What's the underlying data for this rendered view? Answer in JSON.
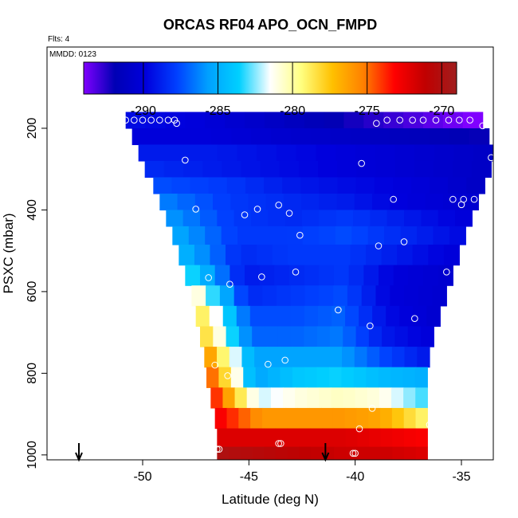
{
  "chart_data": {
    "type": "heatmap",
    "title": "ORCAS RF04 APO_OCN_FMPD",
    "annotations": {
      "flights": "Flts: 4",
      "date": "MMDD: 0123"
    },
    "xlabel": "Latitude (deg N)",
    "ylabel": "PSXC (mbar)",
    "xlim": [
      -54.5,
      -33.5
    ],
    "ylim": [
      1012,
      1
    ],
    "x_ticks": [
      -50,
      -45,
      -40,
      -35
    ],
    "x_tick_labels": [
      "-50",
      "-45",
      "-40",
      "-35"
    ],
    "y_ticks": [
      200,
      400,
      600,
      800,
      1000
    ],
    "y_tick_labels": [
      "200",
      "400",
      "600",
      "800",
      "1000"
    ],
    "colorbar": {
      "range": [
        -294,
        -269
      ],
      "ticks": [
        -290,
        -285,
        -280,
        -275,
        -270
      ],
      "tick_labels": [
        "-290",
        "-285",
        "-280",
        "-275",
        "-270"
      ],
      "colors": [
        "#8000ff",
        "#0000b4",
        "#0000dd",
        "#0040ff",
        "#00a0ff",
        "#00d0ff",
        "#ffffff",
        "#ffff80",
        "#ffc000",
        "#ff8000",
        "#ff0000",
        "#c00000",
        "#a01e1e"
      ]
    },
    "grid": false,
    "legend": "none",
    "pressure_bins": [
      180,
      220,
      260,
      300,
      340,
      380,
      420,
      460,
      510,
      560,
      610,
      660,
      710,
      760,
      810,
      860,
      910,
      960,
      1000
    ],
    "bin_lat_ranges": [
      [
        -50.8,
        -34.0
      ],
      [
        -50.5,
        -33.7
      ],
      [
        -50.2,
        -33.5
      ],
      [
        -49.9,
        -33.6
      ],
      [
        -49.5,
        -33.9
      ],
      [
        -49.2,
        -34.2
      ],
      [
        -48.9,
        -34.5
      ],
      [
        -48.6,
        -34.8
      ],
      [
        -48.3,
        -35.1
      ],
      [
        -48.0,
        -35.4
      ],
      [
        -47.7,
        -35.7
      ],
      [
        -47.5,
        -36.0
      ],
      [
        -47.3,
        -36.3
      ],
      [
        -47.1,
        -36.5
      ],
      [
        -47.0,
        -36.6
      ],
      [
        -46.8,
        -36.6
      ],
      [
        -46.6,
        -36.6
      ],
      [
        -46.5,
        -36.6
      ],
      [
        -46.5,
        -36.6
      ]
    ],
    "bin_values": [
      [
        -289.5,
        -290.0,
        -291.0,
        -292.0,
        -293.0,
        -294.0
      ],
      [
        -290.0,
        -290.0,
        -290.5,
        -291.0,
        -291.5,
        -292.0
      ],
      [
        -289.0,
        -289.0,
        -289.5,
        -290.0,
        -290.5,
        -291.0
      ],
      [
        -288.5,
        -289.0,
        -289.5,
        -290.0,
        -290.5,
        -291.0
      ],
      [
        -287.5,
        -288.0,
        -289.0,
        -289.5,
        -290.0,
        -291.0
      ],
      [
        -286.5,
        -288.0,
        -288.5,
        -289.0,
        -290.0,
        -290.5
      ],
      [
        -286.0,
        -288.0,
        -288.5,
        -288.0,
        -289.0,
        -290.0
      ],
      [
        -285.5,
        -288.0,
        -288.0,
        -287.5,
        -288.5,
        -289.5
      ],
      [
        -285.0,
        -288.5,
        -288.0,
        -288.0,
        -289.0,
        -290.0
      ],
      [
        -283.5,
        -289.0,
        -288.5,
        -288.0,
        -290.0,
        -290.5
      ],
      [
        -281.0,
        -288.5,
        -288.0,
        -287.5,
        -290.0,
        -290.5
      ],
      [
        -279.0,
        -287.5,
        -287.5,
        -287.0,
        -289.5,
        -290.5
      ],
      [
        -278.5,
        -287.0,
        -287.0,
        -286.5,
        -289.0,
        -290.0
      ],
      [
        -276.5,
        -285.5,
        -285.5,
        -285.5,
        -287.5,
        -289.0
      ],
      [
        -275.0,
        -285.5,
        -284.0,
        -283.5,
        -284.5,
        -285.0
      ],
      [
        -274.0,
        -282.0,
        -281.0,
        -280.5,
        -281.0,
        -283.0
      ],
      [
        -273.0,
        -276.0,
        -276.0,
        -276.0,
        -276.5,
        -279.0
      ],
      [
        -272.0,
        -272.0,
        -272.0,
        -272.0,
        -272.5,
        -273.0
      ],
      [
        -270.0,
        -270.5,
        -271.0,
        -271.5,
        -271.5,
        -272.0
      ]
    ],
    "points": [
      [
        -50.8,
        180
      ],
      [
        -50.4,
        180
      ],
      [
        -50.0,
        180
      ],
      [
        -49.6,
        180
      ],
      [
        -49.2,
        180
      ],
      [
        -48.8,
        180
      ],
      [
        -48.5,
        180
      ],
      [
        -48.4,
        188
      ],
      [
        -39.0,
        188
      ],
      [
        -38.5,
        180
      ],
      [
        -37.9,
        180
      ],
      [
        -37.3,
        180
      ],
      [
        -36.8,
        180
      ],
      [
        -36.2,
        180
      ],
      [
        -35.6,
        180
      ],
      [
        -35.1,
        180
      ],
      [
        -34.6,
        180
      ],
      [
        -34.0,
        194
      ],
      [
        -33.6,
        272
      ],
      [
        -48.0,
        278
      ],
      [
        -39.7,
        286
      ],
      [
        -38.2,
        374
      ],
      [
        -35.4,
        374
      ],
      [
        -34.9,
        374
      ],
      [
        -34.4,
        374
      ],
      [
        -33.6,
        366
      ],
      [
        -35.0,
        387
      ],
      [
        -43.6,
        388
      ],
      [
        -43.1,
        408
      ],
      [
        -44.6,
        398
      ],
      [
        -45.2,
        412
      ],
      [
        -47.5,
        398
      ],
      [
        -42.6,
        462
      ],
      [
        -37.7,
        478
      ],
      [
        -38.9,
        488
      ],
      [
        -35.7,
        552
      ],
      [
        -42.8,
        552
      ],
      [
        -44.4,
        564
      ],
      [
        -46.9,
        566
      ],
      [
        -45.9,
        582
      ],
      [
        -40.8,
        645
      ],
      [
        -39.3,
        684
      ],
      [
        -37.2,
        666
      ],
      [
        -35.9,
        766
      ],
      [
        -43.3,
        768
      ],
      [
        -44.1,
        778
      ],
      [
        -46.6,
        780
      ],
      [
        -46.0,
        806
      ],
      [
        -39.2,
        886
      ],
      [
        -36.5,
        926
      ],
      [
        -39.8,
        936
      ],
      [
        -43.6,
        972
      ],
      [
        -43.5,
        972
      ],
      [
        -46.5,
        986
      ],
      [
        -46.4,
        986
      ],
      [
        -40.1,
        996
      ],
      [
        -40.0,
        996
      ],
      [
        -36.4,
        998
      ]
    ],
    "arrows": [
      -53.0,
      -41.4
    ]
  }
}
